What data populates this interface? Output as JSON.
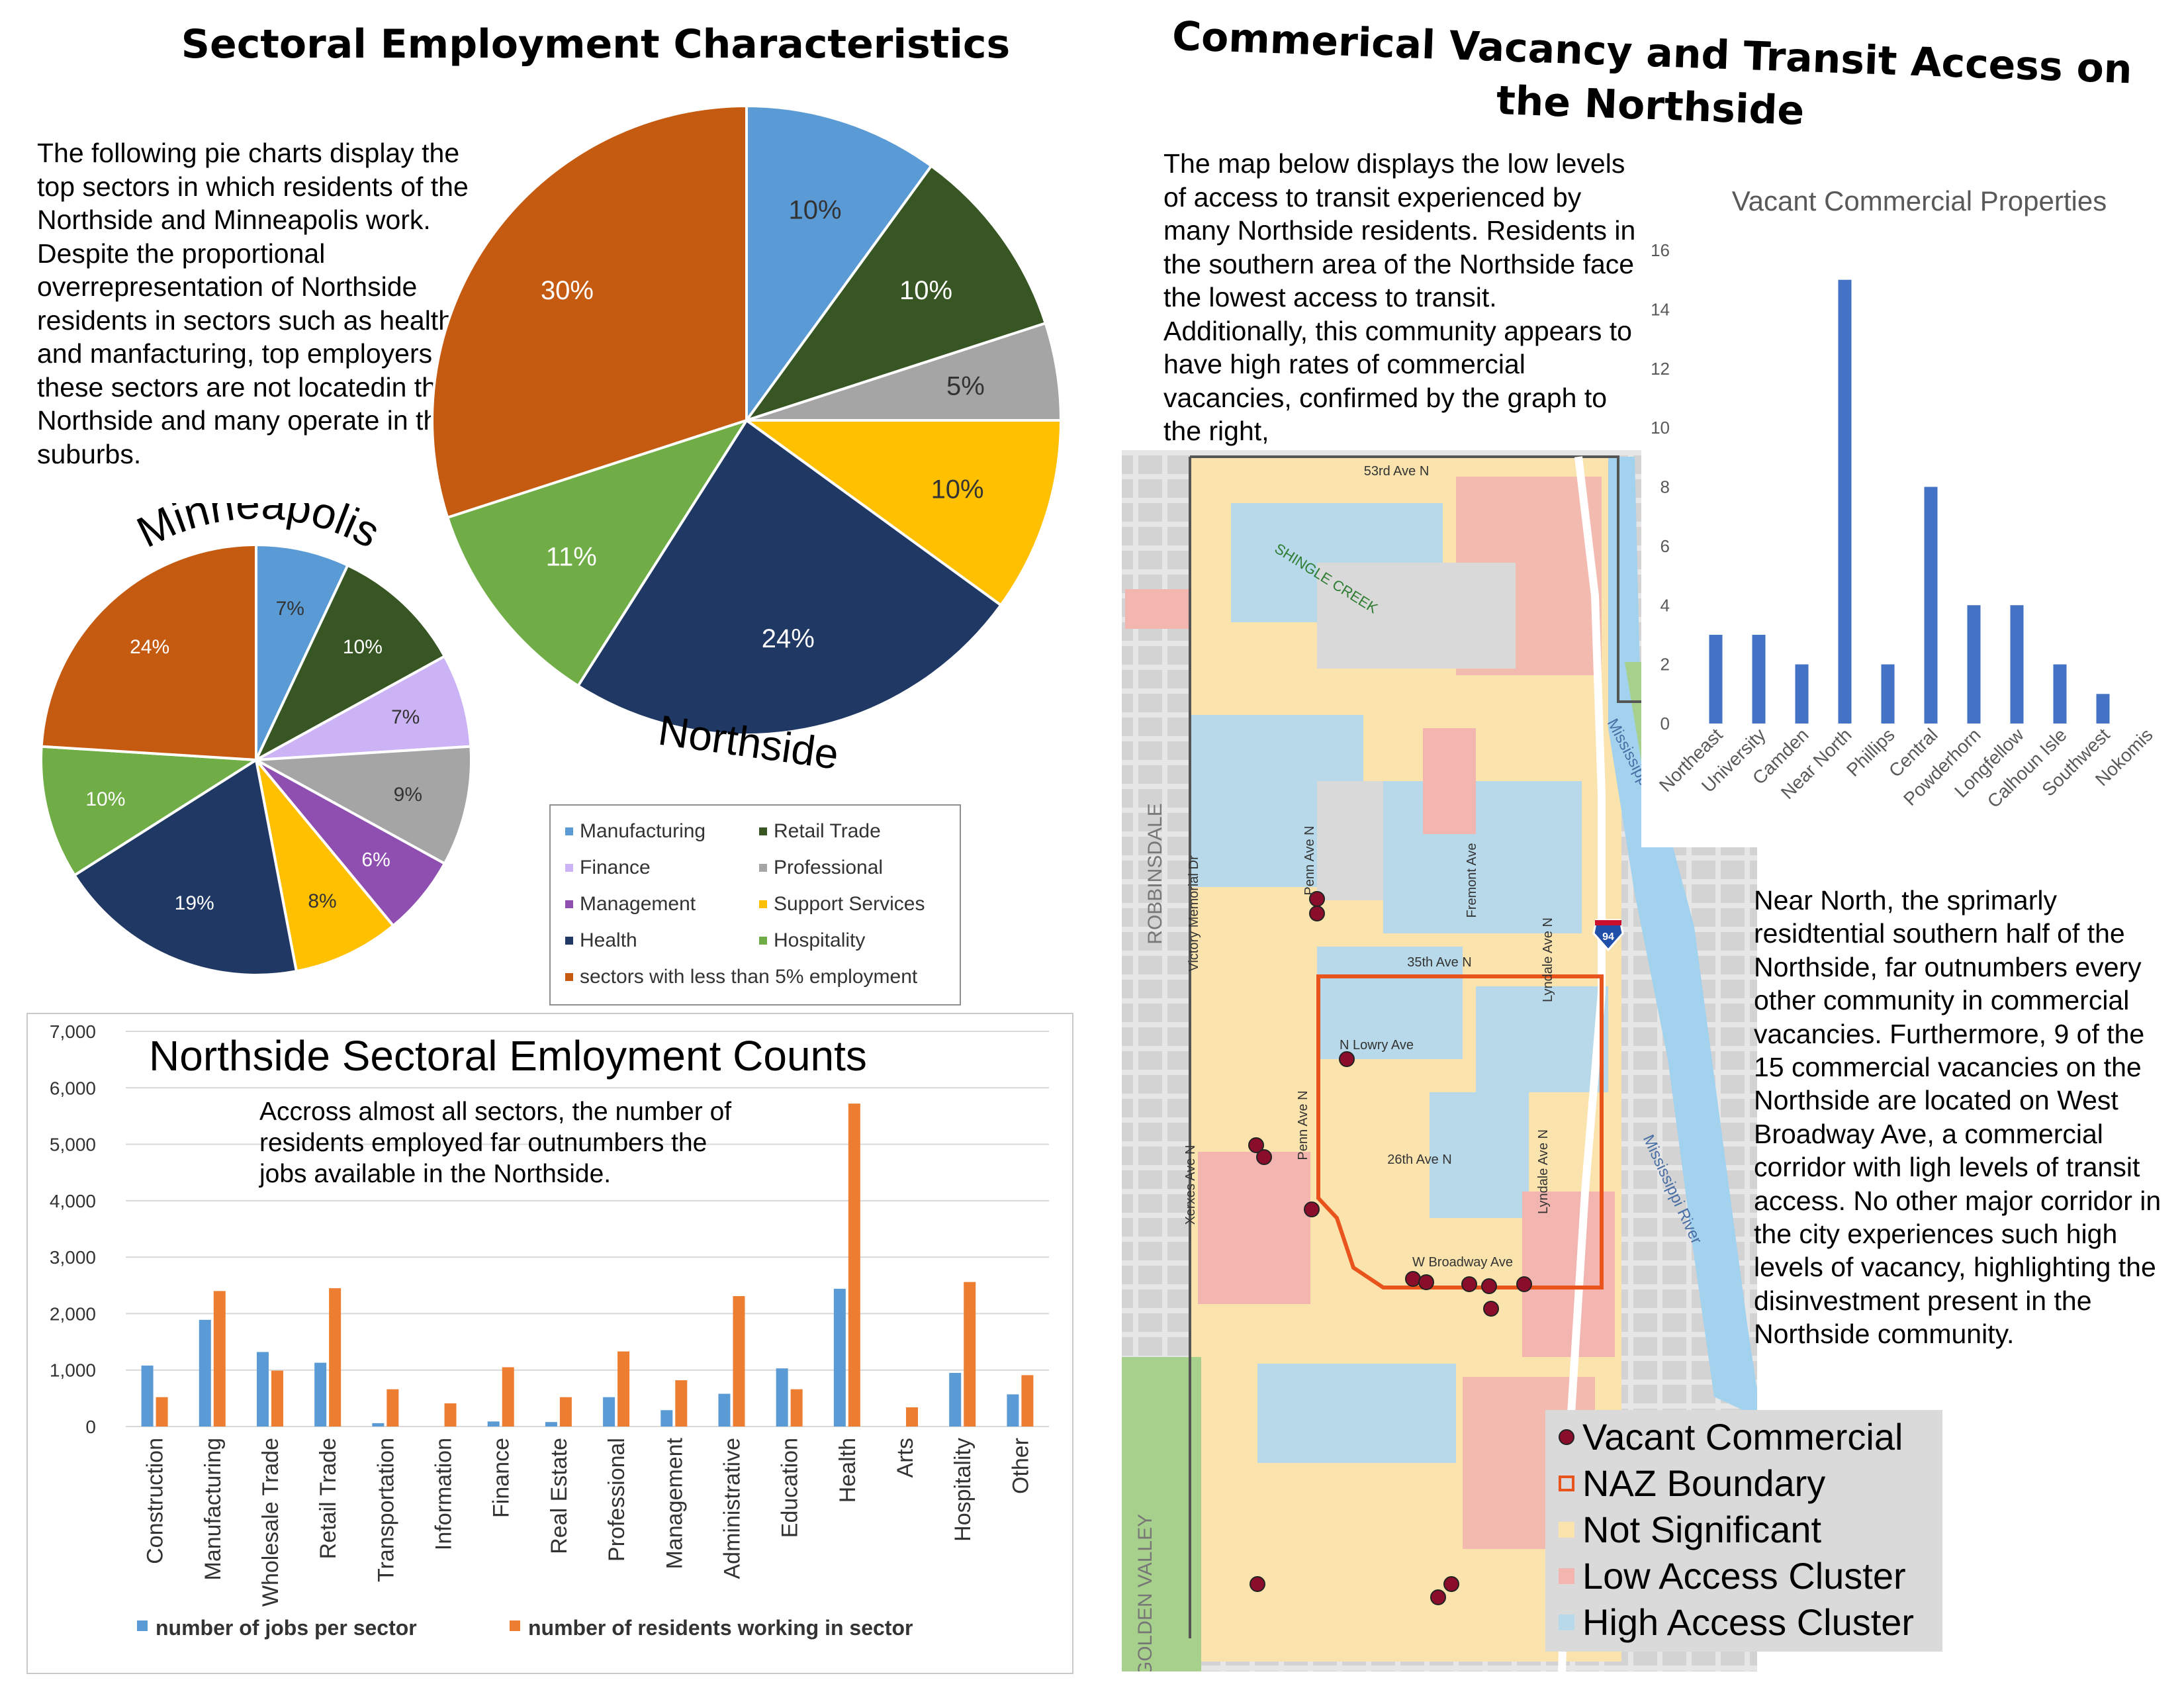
{
  "left": {
    "title": "Sectoral Employment Characteristics",
    "intro": "The following pie charts display the top sectors in which residents of the Northside and Minneapolis work. Despite the proportional overrepresentation of Northside residents in sectors such as health and manfacturing, top employers in these sectors are not locatedin the Northside and many operate in the suburbs."
  },
  "right": {
    "title": "Commerical Vacancy and Transit Access on the Northside",
    "intro": "The map below displays the low levels of access to transit experienced by many Northside residents. Residents in the southern area of the Northside face the lowest access to transit. Additionally, this community appears to have high rates of commercial vacancies, confirmed by the graph to the right,",
    "outro": "Near North, the sprimarly residtential southern half of the Northside, far outnumbers every other community in commercial vacancies. Furthermore, 9 of the 15 commercial vacancies on the Northside are located on West Broadway Ave, a commercial corridor with ligh levels of transit access. No other major corridor in the city experiences such high levels of vacancy, highlighting the disinvestment present in the Northside community."
  },
  "colors": {
    "manufacturing": "#5b9bd5",
    "retail": "#375623",
    "finance": "#ccb3f5",
    "professional": "#a5a5a5",
    "management": "#8e4fb0",
    "support": "#ffc000",
    "health": "#203864",
    "hospitality": "#70ad47",
    "other": "#c55a11",
    "jobs": "#5b9bd5",
    "residents": "#ed7d31",
    "vacancyBar": "#4472c4",
    "lowAccess": "#f2b5b0",
    "highAccess": "#b7d9ea",
    "notSignificant": "#fbe3ad",
    "naz": "#e8541c",
    "vacantDot": "#8b0d2c"
  },
  "pie_legend": [
    {
      "label": "Manufacturing",
      "color": "#5b9bd5"
    },
    {
      "label": "Retail Trade",
      "color": "#375623"
    },
    {
      "label": "Finance",
      "color": "#ccb3f5"
    },
    {
      "label": "Professional",
      "color": "#a5a5a5"
    },
    {
      "label": "Management",
      "color": "#8e4fb0"
    },
    {
      "label": "Support Services",
      "color": "#ffc000"
    },
    {
      "label": "Health",
      "color": "#203864"
    },
    {
      "label": "Hospitality",
      "color": "#70ad47"
    },
    {
      "label": "sectors with less than 5% employment",
      "color": "#c55a11"
    }
  ],
  "map": {
    "streets": [
      "53rd Ave N",
      "SHINGLE CREEK",
      "ROBBINSDALE",
      "Victory Memorial Dr",
      "Penn Ave N",
      "Fremont Ave",
      "Mississippi River",
      "Lyndale Ave N",
      "35th Ave N",
      "N Lowry Ave",
      "Penn Ave N",
      "Xerxes Ave N",
      "26th Ave N",
      "Lyndale Ave N",
      "W Broadway Ave",
      "Mississippi River",
      "GOLDEN VALLEY"
    ],
    "shield": "94",
    "legend": [
      "Vacant Commercial",
      "NAZ Boundary",
      "Not Significant",
      "Low Access Cluster",
      "High Access Cluster"
    ]
  },
  "chart_data": [
    {
      "type": "pie",
      "title": "Northside",
      "labels": [
        "Manufacturing",
        "Retail Trade",
        "Professional",
        "Support Services",
        "Health",
        "Hospitality",
        "sectors with less than 5% employment"
      ],
      "values": [
        10,
        10,
        5,
        10,
        24,
        11,
        30
      ],
      "data_labels": [
        "10%",
        "10%",
        "5%",
        "10%",
        "24%",
        "11%",
        "30%"
      ]
    },
    {
      "type": "pie",
      "title": "Minneapolis",
      "labels": [
        "Manufacturing",
        "Retail Trade",
        "Finance",
        "Professional",
        "Management",
        "Support Services",
        "Health",
        "Hospitality",
        "sectors with less than 5% employment"
      ],
      "values": [
        7,
        10,
        7,
        9,
        6,
        8,
        19,
        10,
        24
      ],
      "data_labels": [
        "7%",
        "10%",
        "7%",
        "9%",
        "6%",
        "8%",
        "19%",
        "10%",
        "24%"
      ]
    },
    {
      "type": "bar",
      "title": "Northside Sectoral Emloyment Counts",
      "annotation": "Accross almost all sectors, the number of residents employed far outnumbers the jobs available in the Northside.",
      "categories": [
        "Construction",
        "Manufacturing",
        "Wholesale Trade",
        "Retail Trade",
        "Transportation",
        "Information",
        "Finance",
        "Real Estate",
        "Professional",
        "Management",
        "Administrative",
        "Education",
        "Health",
        "Arts",
        "Hospitality",
        "Other"
      ],
      "series": [
        {
          "name": "number of jobs per sector",
          "values": [
            1080,
            1890,
            1320,
            1130,
            60,
            0,
            90,
            80,
            520,
            290,
            580,
            1030,
            2440,
            0,
            950,
            570
          ]
        },
        {
          "name": "number of residents working in sector",
          "values": [
            520,
            2400,
            990,
            2450,
            660,
            410,
            1050,
            520,
            1330,
            820,
            2310,
            660,
            5720,
            340,
            2560,
            910
          ]
        }
      ],
      "ylim": [
        0,
        7000
      ],
      "yticks": [
        "0",
        "1,000",
        "2,000",
        "3,000",
        "4,000",
        "5,000",
        "6,000",
        "7,000"
      ],
      "grid": true,
      "legend_position": "bottom"
    },
    {
      "type": "bar",
      "title": "Vacant Commercial Properties",
      "categories": [
        "Northeast",
        "University",
        "Camden",
        "Near North",
        "Phillips",
        "Central",
        "Powderhorn",
        "Longfellow",
        "Calhoun Isle",
        "Southwest",
        "Nokomis"
      ],
      "values": [
        3,
        3,
        2,
        15,
        2,
        8,
        4,
        4,
        2,
        1,
        0
      ],
      "ylim": [
        0,
        16
      ],
      "yticks": [
        "0",
        "2",
        "4",
        "6",
        "8",
        "10",
        "12",
        "14",
        "16"
      ],
      "grid": false
    }
  ]
}
